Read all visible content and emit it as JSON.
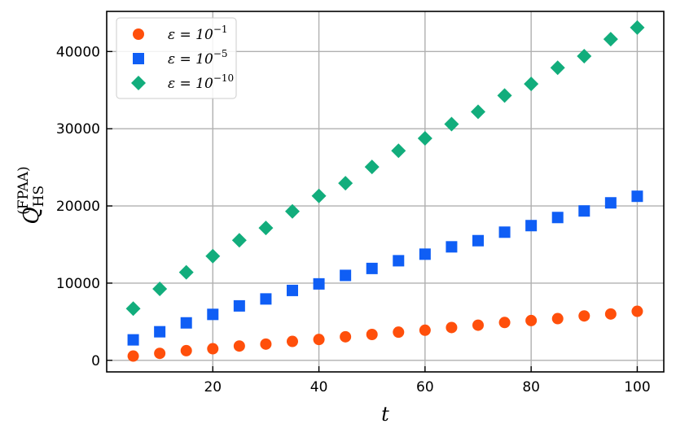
{
  "chart_data": {
    "type": "scatter",
    "xlabel": "t",
    "ylabel": {
      "main": "Q",
      "sub": "HS",
      "sup": "(FPAA)"
    },
    "xlim": [
      0,
      105
    ],
    "ylim": [
      -1500,
      45200
    ],
    "xticks": [
      20,
      40,
      60,
      80,
      100
    ],
    "yticks": [
      0,
      10000,
      20000,
      30000,
      40000
    ],
    "xtick_labels": [
      "20",
      "40",
      "60",
      "80",
      "100"
    ],
    "ytick_labels": [
      "0",
      "10000",
      "20000",
      "30000",
      "40000"
    ],
    "grid": true,
    "legend_position": "top-left",
    "x": [
      5,
      10,
      15,
      20,
      25,
      30,
      35,
      40,
      45,
      50,
      55,
      60,
      65,
      70,
      75,
      80,
      85,
      90,
      95,
      100
    ],
    "series": [
      {
        "name": "ε = 10^−1",
        "legend": {
          "base": "ε = 10",
          "exp": "−1"
        },
        "marker": "circle",
        "color": "#ff4f0b",
        "values": [
          550,
          900,
          1250,
          1500,
          1850,
          2100,
          2450,
          2700,
          3050,
          3350,
          3650,
          3900,
          4250,
          4550,
          4900,
          5150,
          5400,
          5750,
          6000,
          6350
        ]
      },
      {
        "name": "ε = 10^−5",
        "legend": {
          "base": "ε = 10",
          "exp": "−5"
        },
        "marker": "square",
        "color": "#0f5ef5",
        "values": [
          2650,
          3700,
          4850,
          5950,
          7050,
          7950,
          9050,
          9900,
          11000,
          11900,
          12900,
          13750,
          14700,
          15500,
          16600,
          17450,
          18500,
          19350,
          20400,
          21250
        ]
      },
      {
        "name": "ε = 10^−10",
        "legend": {
          "base": "ε = 10",
          "exp": "−10"
        },
        "marker": "diamond",
        "color": "#12ad7c",
        "values": [
          6700,
          9250,
          11400,
          13500,
          15550,
          17150,
          19300,
          21300,
          22950,
          25050,
          27150,
          28750,
          30600,
          32200,
          34300,
          35800,
          37900,
          39400,
          41600,
          43100
        ]
      }
    ]
  }
}
